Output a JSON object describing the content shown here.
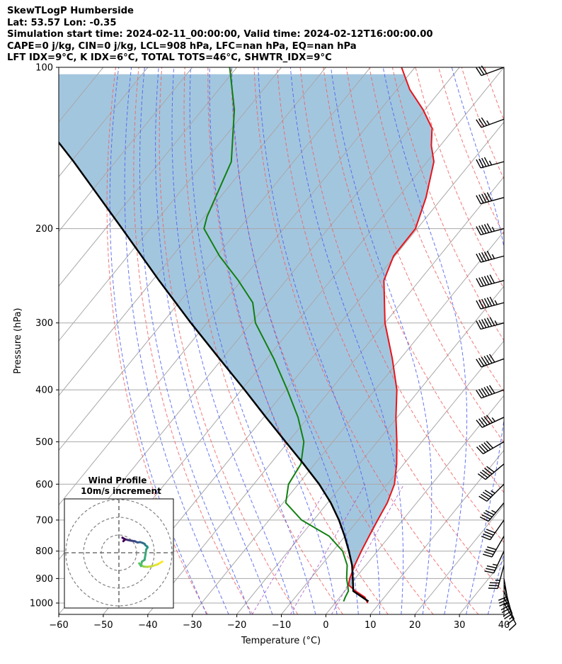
{
  "header": {
    "lines": [
      "SkewTLogP Humberside",
      "Lat: 53.57   Lon: -0.35",
      "Simulation start time: 2024-02-11_00:00:00, Valid time: 2024-02-12T16:00:00.00",
      "CAPE=0 j/kg, CIN=0 j/kg, LCL=908 hPa, LFC=nan hPa, EQ=nan hPa",
      "LFT IDX=9$^\\circ$C, K IDX=6$^\\circ$C, TOTAL TOTS=46$^\\circ$C, SHWTR_IDX=9$^\\circ$C"
    ]
  },
  "chart_data": {
    "type": "skewt-logp",
    "xlabel": "Temperature ($^\\circ$C)",
    "ylabel": "Pressure (hPa)",
    "xlim": [
      -60,
      40
    ],
    "ylim": [
      1050,
      100
    ],
    "y_scale": "log",
    "x_ticks": [
      -60,
      -50,
      -40,
      -30,
      -20,
      -10,
      0,
      10,
      20,
      30,
      40
    ],
    "x_tick_labels": [
      "−60",
      "−50",
      "−40",
      "−30",
      "−20",
      "−10",
      "0",
      "10",
      "20",
      "30",
      "40"
    ],
    "y_ticks": [
      1000,
      900,
      800,
      700,
      600,
      500,
      400,
      300,
      200,
      100
    ],
    "y_tick_labels": [
      "1000",
      "900",
      "800",
      "700",
      "600",
      "500",
      "400",
      "300",
      "200",
      "100"
    ],
    "grid": true,
    "colors": {
      "temperature": "#e8141a",
      "dewpoint": "#108010",
      "parcel": "#000000",
      "cape_fill": "#a3c6df",
      "dry_adiabats": "#f06060",
      "moist_adiabats": "#4a5ef0",
      "mixing_ratio": "#a04ac8",
      "isotherms": "#a8a8a8",
      "wind_profile_colormap": [
        "#440154",
        "#3b528b",
        "#21918c",
        "#5ec962",
        "#fde725"
      ]
    },
    "series": [
      {
        "key": "temperature",
        "points": [
          [
            7.3,
            1000
          ],
          [
            5.6,
            975
          ],
          [
            2.4,
            950
          ],
          [
            -0.3,
            925
          ],
          [
            -1.2,
            900
          ],
          [
            -2.5,
            850
          ],
          [
            -3.6,
            800
          ],
          [
            -4.6,
            750
          ],
          [
            -5.6,
            700
          ],
          [
            -6.6,
            650
          ],
          [
            -8.4,
            600
          ],
          [
            -11.6,
            550
          ],
          [
            -15.6,
            500
          ],
          [
            -20.3,
            450
          ],
          [
            -25.1,
            400
          ],
          [
            -31.8,
            350
          ],
          [
            -40.0,
            300
          ],
          [
            -48.0,
            250
          ],
          [
            -50.3,
            225
          ],
          [
            -50.4,
            200
          ],
          [
            -53.7,
            175
          ],
          [
            -58.5,
            150
          ],
          [
            -62.0,
            140
          ],
          [
            -65.0,
            130
          ],
          [
            -70.4,
            120
          ],
          [
            -77.1,
            110
          ],
          [
            -83.0,
            100
          ]
        ]
      },
      {
        "key": "dewpoint",
        "points": [
          [
            1.6,
            993
          ],
          [
            1.2,
            975
          ],
          [
            0.8,
            950
          ],
          [
            -0.5,
            925
          ],
          [
            -1.9,
            900
          ],
          [
            -4.2,
            850
          ],
          [
            -7.8,
            800
          ],
          [
            -13.6,
            750
          ],
          [
            -22.7,
            700
          ],
          [
            -29.4,
            650
          ],
          [
            -32.2,
            600
          ],
          [
            -33.1,
            550
          ],
          [
            -36.5,
            500
          ],
          [
            -42.3,
            450
          ],
          [
            -49.7,
            400
          ],
          [
            -58.4,
            350
          ],
          [
            -69.1,
            300
          ],
          [
            -73.4,
            275
          ],
          [
            -80.7,
            250
          ],
          [
            -89.4,
            225
          ],
          [
            -97.9,
            200
          ],
          [
            -99.4,
            190
          ],
          [
            -101.0,
            175
          ],
          [
            -104.0,
            150
          ],
          [
            -112.8,
            120
          ],
          [
            -121.6,
            100
          ]
        ]
      },
      {
        "key": "parcel",
        "points": [
          [
            7.2,
            993
          ],
          [
            1.9,
            950
          ],
          [
            -0.1,
            908
          ],
          [
            -3.1,
            850
          ],
          [
            -6.4,
            800
          ],
          [
            -10.1,
            750
          ],
          [
            -14.3,
            700
          ],
          [
            -19.3,
            650
          ],
          [
            -25.3,
            600
          ],
          [
            -32.5,
            550
          ],
          [
            -40.6,
            500
          ],
          [
            -49.5,
            450
          ],
          [
            -59.3,
            400
          ],
          [
            -70.6,
            350
          ],
          [
            -83.6,
            300
          ],
          [
            -98.5,
            250
          ],
          [
            -116.3,
            200
          ],
          [
            -139.4,
            150
          ],
          [
            -158.0,
            120
          ],
          [
            -174.6,
            100
          ]
        ]
      }
    ],
    "wind_barbs": {
      "pressure_hpa": [
        1000,
        975,
        950,
        925,
        900,
        850,
        800,
        750,
        700,
        650,
        600,
        550,
        500,
        450,
        400,
        350,
        300,
        275,
        250,
        225,
        200,
        175,
        150,
        125,
        100
      ],
      "speed_kt": [
        10,
        15,
        20,
        25,
        30,
        35,
        35,
        40,
        40,
        45,
        45,
        50,
        50,
        55,
        60,
        60,
        65,
        65,
        60,
        55,
        55,
        50,
        45,
        35,
        30
      ],
      "direction_deg": [
        150,
        155,
        160,
        165,
        170,
        195,
        205,
        210,
        215,
        220,
        225,
        230,
        240,
        245,
        250,
        250,
        255,
        255,
        255,
        255,
        255,
        255,
        255,
        250,
        250
      ]
    },
    "hodograph": {
      "title": "Wind Profile",
      "subtitle": "10m/s increment",
      "rings_ms": [
        10,
        20,
        30
      ],
      "u_ms": [
        24.5,
        22.0,
        19.0,
        16.0,
        14.0,
        12.0,
        11.5,
        12.5,
        13.0,
        14.5,
        15.5,
        16.2,
        16.0,
        15.0,
        14.5,
        13.5,
        12.0,
        10.5,
        9.0,
        7.0,
        5.0,
        3.0,
        2.0,
        3.5,
        2.5
      ],
      "v_ms": [
        -5.0,
        -6.5,
        -7.5,
        -8.0,
        -7.8,
        -6.8,
        -6.0,
        -7.5,
        -5.0,
        -4.0,
        2.0,
        3.0,
        3.5,
        4.2,
        5.0,
        5.5,
        6.0,
        5.8,
        6.5,
        6.8,
        7.2,
        7.8,
        8.5,
        7.5,
        6.5
      ]
    }
  }
}
